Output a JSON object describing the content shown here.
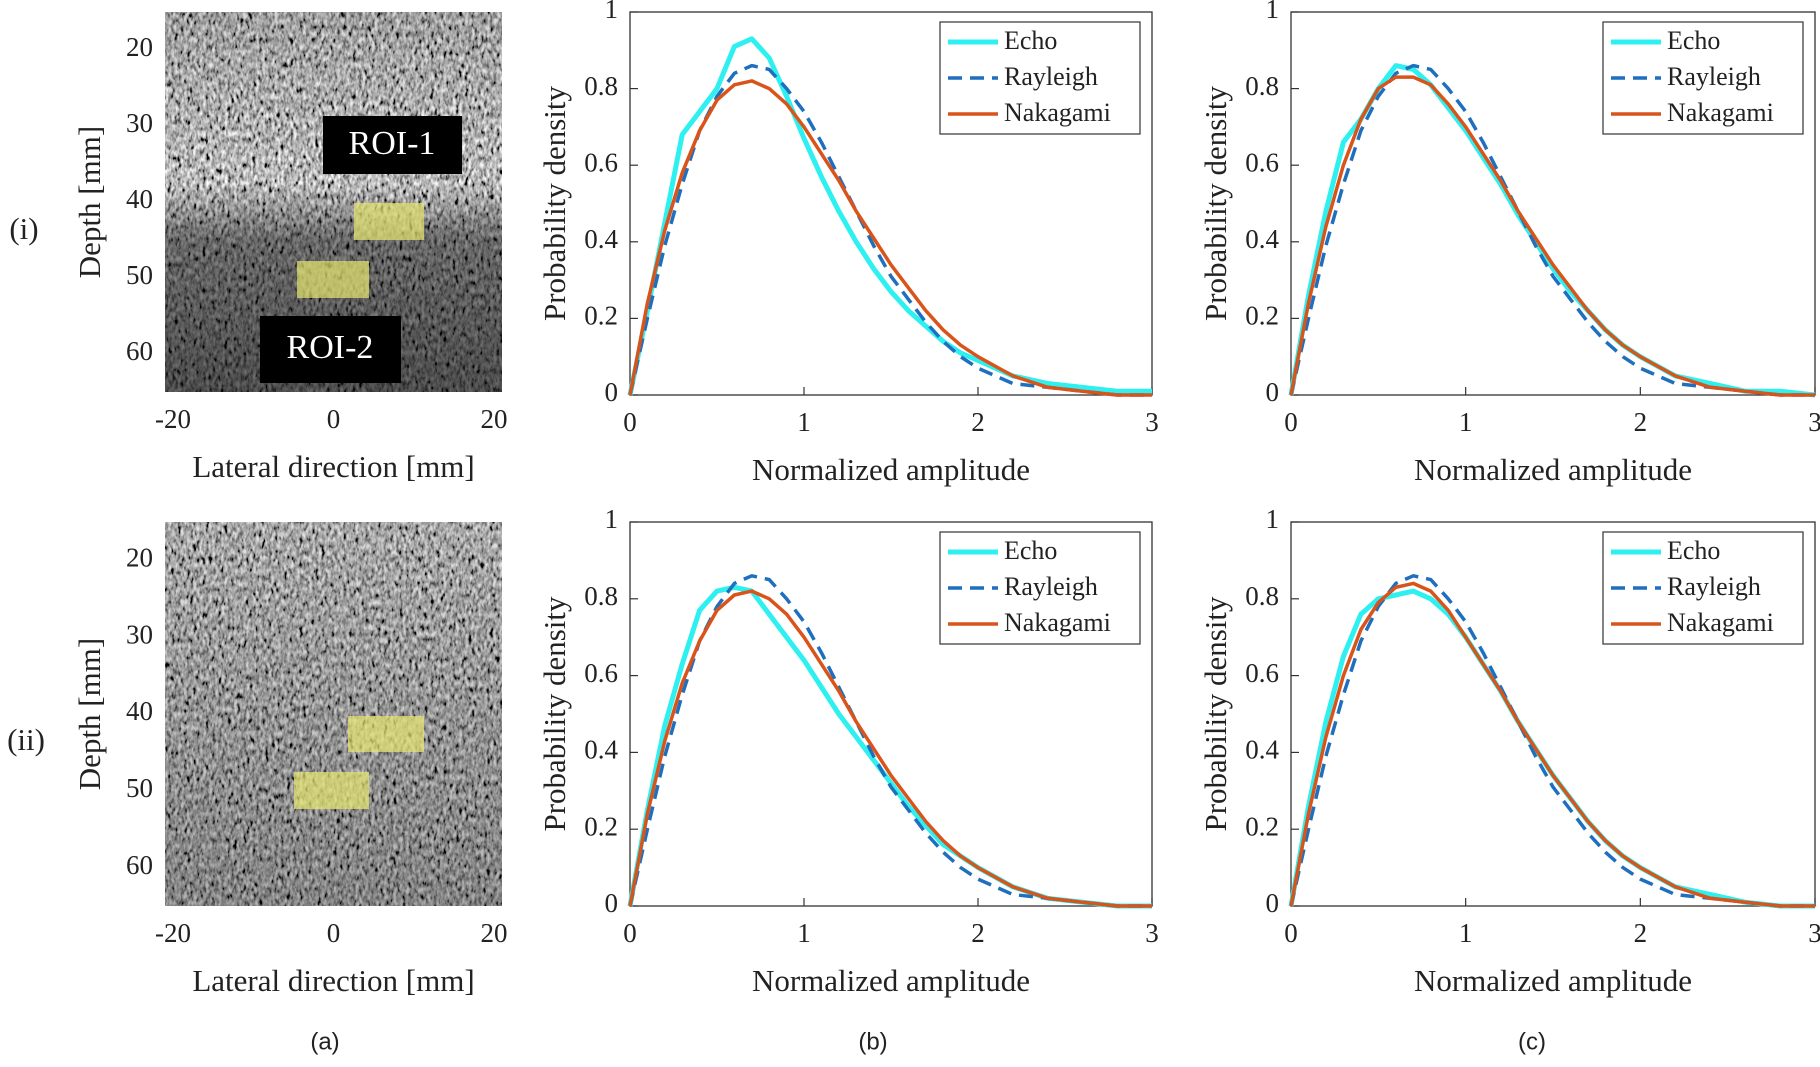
{
  "row_labels": [
    "(i)",
    "(ii)"
  ],
  "column_labels": [
    "(a)",
    "(b)",
    "(c)"
  ],
  "chart_data": [
    {
      "type": "image",
      "xlabel": "Lateral direction [mm]",
      "ylabel": "Depth [mm]",
      "xlim": [
        -21,
        21
      ],
      "ylim": [
        65,
        15
      ],
      "xticks": [
        -20,
        0,
        20
      ],
      "yticks": [
        20,
        30,
        40,
        50,
        60
      ],
      "annotations": [
        "ROI-1",
        "ROI-2"
      ]
    },
    {
      "type": "line",
      "xlabel": "Normalized amplitude",
      "ylabel": "Probability density",
      "xlim": [
        0,
        3
      ],
      "ylim": [
        0,
        1
      ],
      "xticks": [
        0,
        1,
        2,
        3
      ],
      "yticks": [
        0,
        0.2,
        0.4,
        0.6,
        0.8,
        1
      ],
      "legend": "upper right",
      "x": [
        0,
        0.1,
        0.2,
        0.3,
        0.4,
        0.5,
        0.6,
        0.7,
        0.8,
        0.9,
        1.0,
        1.1,
        1.2,
        1.3,
        1.4,
        1.5,
        1.6,
        1.7,
        1.8,
        1.9,
        2.0,
        2.2,
        2.4,
        2.6,
        2.8,
        3.0
      ],
      "series": [
        {
          "name": "Echo",
          "color": "#2ef0f0",
          "dashed": false,
          "values": [
            0,
            0.22,
            0.45,
            0.68,
            0.74,
            0.8,
            0.91,
            0.93,
            0.88,
            0.78,
            0.67,
            0.57,
            0.48,
            0.4,
            0.33,
            0.27,
            0.22,
            0.18,
            0.14,
            0.11,
            0.09,
            0.05,
            0.03,
            0.02,
            0.01,
            0.01
          ]
        },
        {
          "name": "Rayleigh",
          "color": "#1f6fbf",
          "dashed": true,
          "values": [
            0,
            0.2,
            0.39,
            0.55,
            0.69,
            0.78,
            0.84,
            0.86,
            0.85,
            0.8,
            0.74,
            0.66,
            0.57,
            0.48,
            0.39,
            0.31,
            0.25,
            0.19,
            0.14,
            0.1,
            0.07,
            0.03,
            0.02,
            0.01,
            0,
            0
          ]
        },
        {
          "name": "Nakagami",
          "color": "#d9541a",
          "dashed": false,
          "values": [
            0,
            0.24,
            0.43,
            0.58,
            0.69,
            0.77,
            0.81,
            0.82,
            0.8,
            0.76,
            0.7,
            0.63,
            0.56,
            0.48,
            0.41,
            0.34,
            0.28,
            0.22,
            0.17,
            0.13,
            0.1,
            0.05,
            0.02,
            0.01,
            0,
            0
          ]
        }
      ]
    },
    {
      "type": "line",
      "xlabel": "Normalized amplitude",
      "ylabel": "Probability density",
      "xlim": [
        0,
        3
      ],
      "ylim": [
        0,
        1
      ],
      "xticks": [
        0,
        1,
        2,
        3
      ],
      "yticks": [
        0,
        0.2,
        0.4,
        0.6,
        0.8,
        1
      ],
      "legend": "upper right",
      "x": [
        0,
        0.1,
        0.2,
        0.3,
        0.4,
        0.5,
        0.6,
        0.7,
        0.8,
        0.9,
        1.0,
        1.1,
        1.2,
        1.3,
        1.4,
        1.5,
        1.6,
        1.7,
        1.8,
        1.9,
        2.0,
        2.2,
        2.4,
        2.6,
        2.8,
        3.0
      ],
      "series": [
        {
          "name": "Echo",
          "color": "#2ef0f0",
          "dashed": false,
          "values": [
            0,
            0.26,
            0.48,
            0.66,
            0.72,
            0.8,
            0.86,
            0.85,
            0.81,
            0.75,
            0.69,
            0.62,
            0.55,
            0.47,
            0.4,
            0.33,
            0.27,
            0.22,
            0.17,
            0.13,
            0.1,
            0.05,
            0.03,
            0.01,
            0.01,
            0
          ]
        },
        {
          "name": "Rayleigh",
          "color": "#1f6fbf",
          "dashed": true,
          "values": [
            0,
            0.2,
            0.39,
            0.55,
            0.69,
            0.78,
            0.84,
            0.86,
            0.85,
            0.8,
            0.74,
            0.66,
            0.57,
            0.48,
            0.39,
            0.31,
            0.25,
            0.19,
            0.14,
            0.1,
            0.07,
            0.03,
            0.02,
            0.01,
            0,
            0
          ]
        },
        {
          "name": "Nakagami",
          "color": "#d9541a",
          "dashed": false,
          "values": [
            0,
            0.24,
            0.44,
            0.6,
            0.72,
            0.8,
            0.83,
            0.83,
            0.81,
            0.76,
            0.7,
            0.63,
            0.56,
            0.48,
            0.41,
            0.34,
            0.28,
            0.22,
            0.17,
            0.13,
            0.1,
            0.05,
            0.02,
            0.01,
            0,
            0
          ]
        }
      ]
    },
    {
      "type": "image",
      "xlabel": "Lateral direction [mm]",
      "ylabel": "Depth [mm]",
      "xlim": [
        -21,
        21
      ],
      "ylim": [
        65,
        15
      ],
      "xticks": [
        -20,
        0,
        20
      ],
      "yticks": [
        20,
        30,
        40,
        50,
        60
      ]
    },
    {
      "type": "line",
      "xlabel": "Normalized amplitude",
      "ylabel": "Probability density",
      "xlim": [
        0,
        3
      ],
      "ylim": [
        0,
        1
      ],
      "xticks": [
        0,
        1,
        2,
        3
      ],
      "yticks": [
        0,
        0.2,
        0.4,
        0.6,
        0.8,
        1
      ],
      "legend": "upper right",
      "x": [
        0,
        0.1,
        0.2,
        0.3,
        0.4,
        0.5,
        0.6,
        0.7,
        0.8,
        0.9,
        1.0,
        1.1,
        1.2,
        1.3,
        1.4,
        1.5,
        1.6,
        1.7,
        1.8,
        1.9,
        2.0,
        2.2,
        2.4,
        2.6,
        2.8,
        3.0
      ],
      "series": [
        {
          "name": "Echo",
          "color": "#2ef0f0",
          "dashed": false,
          "values": [
            0,
            0.25,
            0.47,
            0.63,
            0.77,
            0.82,
            0.83,
            0.82,
            0.76,
            0.7,
            0.64,
            0.57,
            0.5,
            0.44,
            0.38,
            0.32,
            0.26,
            0.21,
            0.16,
            0.13,
            0.1,
            0.05,
            0.02,
            0.01,
            0,
            0
          ]
        },
        {
          "name": "Rayleigh",
          "color": "#1f6fbf",
          "dashed": true,
          "values": [
            0,
            0.2,
            0.39,
            0.55,
            0.69,
            0.78,
            0.84,
            0.86,
            0.85,
            0.8,
            0.74,
            0.66,
            0.57,
            0.48,
            0.39,
            0.31,
            0.25,
            0.19,
            0.14,
            0.1,
            0.07,
            0.03,
            0.02,
            0.01,
            0,
            0
          ]
        },
        {
          "name": "Nakagami",
          "color": "#d9541a",
          "dashed": false,
          "values": [
            0,
            0.24,
            0.43,
            0.58,
            0.69,
            0.77,
            0.81,
            0.82,
            0.8,
            0.76,
            0.7,
            0.63,
            0.56,
            0.48,
            0.41,
            0.34,
            0.28,
            0.22,
            0.17,
            0.13,
            0.1,
            0.05,
            0.02,
            0.01,
            0,
            0
          ]
        }
      ]
    },
    {
      "type": "line",
      "xlabel": "Normalized amplitude",
      "ylabel": "Probability density",
      "xlim": [
        0,
        3
      ],
      "ylim": [
        0,
        1
      ],
      "xticks": [
        0,
        1,
        2,
        3
      ],
      "yticks": [
        0,
        0.2,
        0.4,
        0.6,
        0.8,
        1
      ],
      "legend": "upper right",
      "x": [
        0,
        0.1,
        0.2,
        0.3,
        0.4,
        0.5,
        0.6,
        0.7,
        0.8,
        0.9,
        1.0,
        1.1,
        1.2,
        1.3,
        1.4,
        1.5,
        1.6,
        1.7,
        1.8,
        1.9,
        2.0,
        2.2,
        2.4,
        2.6,
        2.8,
        3.0
      ],
      "series": [
        {
          "name": "Echo",
          "color": "#2ef0f0",
          "dashed": false,
          "values": [
            0,
            0.26,
            0.48,
            0.65,
            0.76,
            0.8,
            0.81,
            0.82,
            0.8,
            0.76,
            0.7,
            0.63,
            0.56,
            0.48,
            0.41,
            0.34,
            0.28,
            0.22,
            0.17,
            0.13,
            0.1,
            0.05,
            0.03,
            0.01,
            0,
            0
          ]
        },
        {
          "name": "Rayleigh",
          "color": "#1f6fbf",
          "dashed": true,
          "values": [
            0,
            0.2,
            0.39,
            0.55,
            0.69,
            0.78,
            0.84,
            0.86,
            0.85,
            0.8,
            0.74,
            0.66,
            0.57,
            0.48,
            0.39,
            0.31,
            0.25,
            0.19,
            0.14,
            0.1,
            0.07,
            0.03,
            0.02,
            0.01,
            0,
            0
          ]
        },
        {
          "name": "Nakagami",
          "color": "#d9541a",
          "dashed": false,
          "values": [
            0,
            0.24,
            0.44,
            0.6,
            0.72,
            0.79,
            0.83,
            0.84,
            0.82,
            0.77,
            0.7,
            0.63,
            0.56,
            0.48,
            0.41,
            0.34,
            0.28,
            0.22,
            0.17,
            0.13,
            0.1,
            0.05,
            0.02,
            0.01,
            0,
            0
          ]
        }
      ]
    }
  ]
}
